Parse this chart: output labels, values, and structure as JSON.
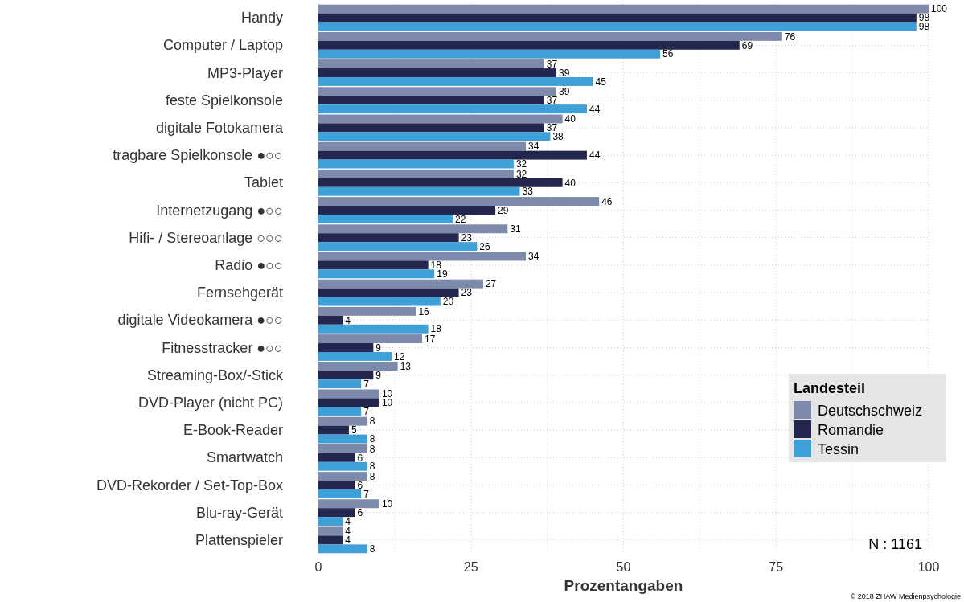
{
  "chart_data": {
    "type": "bar",
    "orientation": "horizontal",
    "xlabel": "Prozentangaben",
    "legend_title": "Landesteil",
    "legend": "bottom right",
    "grid": true,
    "data_labels": true,
    "categories": [
      "Handy",
      "Computer / Laptop",
      "MP3-Player",
      "feste Spielkonsole",
      "digitale Fotokamera",
      "tragbare Spielkonsole ●○○",
      "Tablet",
      "Internetzugang ●○○",
      "Hifi- / Stereoanlage ○○○",
      "Radio ●○○",
      "Fernsehgerät",
      "digitale Videokamera ●○○",
      "Fitnesstracker ●○○",
      "Streaming-Box/-Stick",
      "DVD-Player (nicht PC)",
      "E-Book-Reader",
      "Smartwatch",
      "DVD-Rekorder / Set-Top-Box",
      "Blu-ray-Gerät",
      "Plattenspieler"
    ],
    "series": [
      {
        "name": "Deutschschweiz",
        "color": "#7d8aab",
        "values": [
          100,
          76,
          37,
          39,
          40,
          34,
          32,
          46,
          31,
          34,
          27,
          16,
          17,
          13,
          10,
          8,
          8,
          8,
          10,
          4
        ]
      },
      {
        "name": "Romandie",
        "color": "#23264f",
        "values": [
          98,
          69,
          39,
          37,
          37,
          44,
          40,
          29,
          23,
          18,
          23,
          4,
          9,
          9,
          10,
          5,
          6,
          6,
          6,
          4
        ]
      },
      {
        "name": "Tessin",
        "color": "#3fa0d8",
        "values": [
          98,
          56,
          45,
          44,
          38,
          32,
          33,
          22,
          26,
          19,
          20,
          18,
          12,
          7,
          7,
          8,
          8,
          7,
          4,
          8
        ]
      }
    ],
    "xlim": [
      0,
      100
    ],
    "xticks": [
      0,
      25,
      50,
      75,
      100
    ],
    "annotations": [
      "N : 1161",
      "© 2018 ZHAW Medienpsychologie"
    ]
  }
}
